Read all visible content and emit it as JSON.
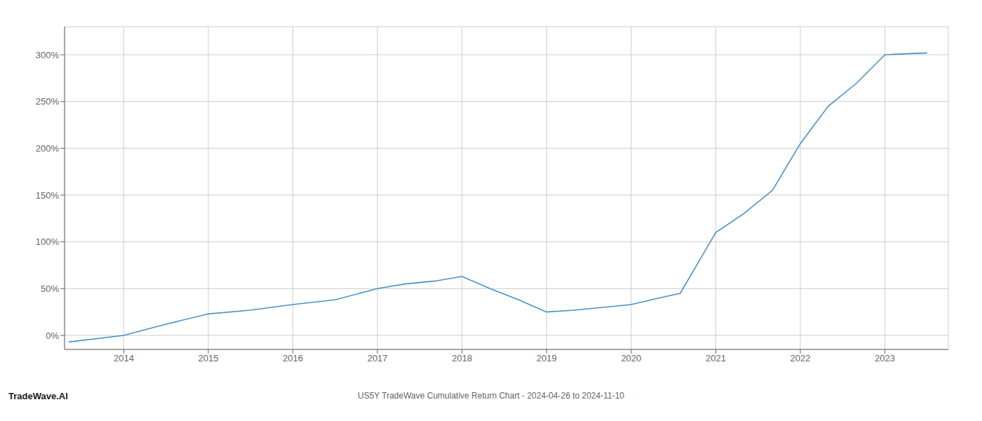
{
  "chart_data": {
    "type": "line",
    "title": "US5Y TradeWave Cumulative Return Chart - 2024-04-26 to 2024-11-10",
    "annotations": [
      "TradeWave.AI"
    ],
    "x": [
      2013.35,
      2014.0,
      2014.5,
      2015.0,
      2015.5,
      2016.0,
      2016.5,
      2017.0,
      2017.33,
      2017.67,
      2018.0,
      2018.33,
      2018.67,
      2019.0,
      2019.33,
      2019.67,
      2020.0,
      2020.33,
      2020.58,
      2021.0,
      2021.33,
      2021.67,
      2022.0,
      2022.33,
      2022.67,
      2023.0,
      2023.5
    ],
    "values": [
      -7,
      0,
      12,
      23,
      27,
      33,
      38,
      50,
      55,
      58,
      63,
      50,
      38,
      25,
      27,
      30,
      33,
      40,
      45,
      110,
      130,
      155,
      205,
      245,
      270,
      300,
      302
    ],
    "color": "#4a90c4",
    "xlim": [
      2013.3,
      2023.75
    ],
    "ylim": [
      -15,
      330
    ],
    "xticks": [
      2014,
      2015,
      2016,
      2017,
      2018,
      2019,
      2020,
      2021,
      2022,
      2023
    ],
    "yticks": [
      {
        "value": 0,
        "label": "0%"
      },
      {
        "value": 50,
        "label": "50%"
      },
      {
        "value": 100,
        "label": "100%"
      },
      {
        "value": 150,
        "label": "150%"
      },
      {
        "value": 200,
        "label": "200%"
      },
      {
        "value": 250,
        "label": "250%"
      },
      {
        "value": 300,
        "label": "300%"
      }
    ],
    "grid": true
  }
}
